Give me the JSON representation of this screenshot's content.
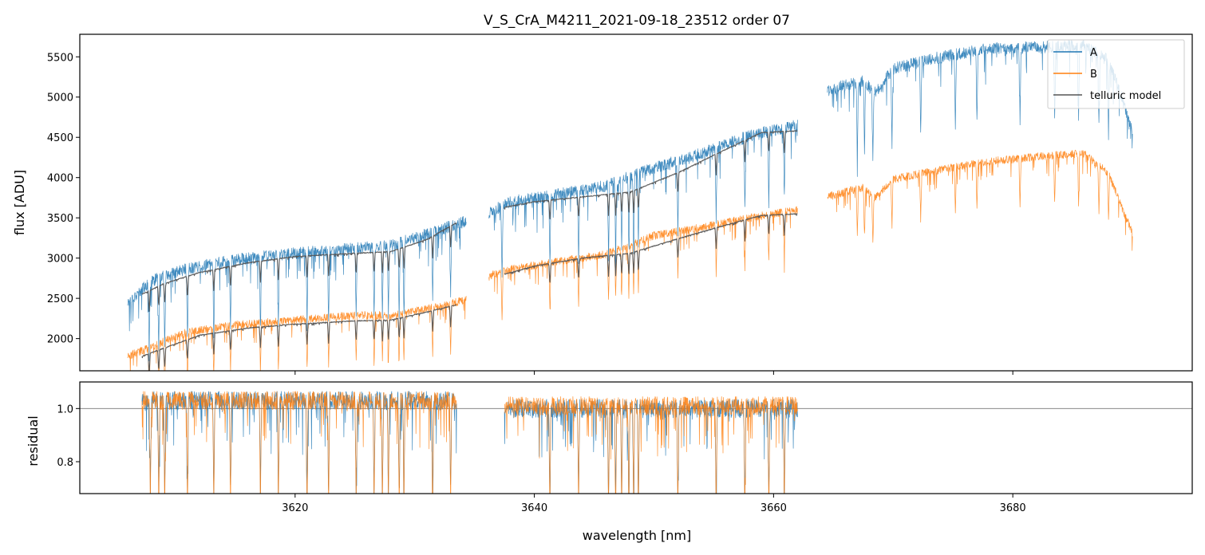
{
  "chart_data": [
    {
      "panel": "top",
      "type": "line",
      "title": "V_S_CrA_M4211_2021-09-18_23512  order 07",
      "xlabel": "",
      "ylabel": "flux [ADU]",
      "xlim": [
        3602,
        3695
      ],
      "ylim": [
        1600,
        5780
      ],
      "yticks": [
        2000,
        2500,
        3000,
        3500,
        4000,
        4500,
        5000,
        5500
      ],
      "xticks": [
        3620,
        3640,
        3660,
        3680
      ],
      "legend": {
        "placement": "top-right",
        "entries": [
          "A",
          "B",
          "telluric model"
        ]
      },
      "series": [
        {
          "name": "A",
          "color": "#1f77b4",
          "segments": [
            {
              "x": [
                3606,
                3608,
                3611,
                3615,
                3620,
                3625,
                3628,
                3631,
                3634.3
              ],
              "y": [
                2450,
                2720,
                2870,
                2980,
                3060,
                3120,
                3150,
                3300,
                3460
              ]
            },
            {
              "x": [
                3636.2,
                3638,
                3642,
                3646,
                3650,
                3654,
                3658,
                3662
              ],
              "y": [
                3560,
                3700,
                3790,
                3900,
                4120,
                4300,
                4520,
                4660
              ]
            },
            {
              "x": [
                3664.5,
                3666,
                3667.5,
                3668.5,
                3670,
                3674,
                3678,
                3682,
                3686,
                3688,
                3690
              ],
              "y": [
                5080,
                5150,
                5200,
                5050,
                5350,
                5500,
                5600,
                5620,
                5640,
                5450,
                4600
              ]
            }
          ]
        },
        {
          "name": "B",
          "color": "#ff7f0e",
          "segments": [
            {
              "x": [
                3606,
                3608,
                3611,
                3615,
                3620,
                3625,
                3628,
                3631,
                3634.3
              ],
              "y": [
                1780,
                1900,
                2080,
                2170,
                2230,
                2290,
                2290,
                2370,
                2480
              ]
            },
            {
              "x": [
                3636.2,
                3638,
                3642,
                3646,
                3650,
                3654,
                3658,
                3662
              ],
              "y": [
                2780,
                2860,
                2960,
                3050,
                3280,
                3380,
                3500,
                3600
              ]
            },
            {
              "x": [
                3664.5,
                3666,
                3667.5,
                3668.5,
                3670,
                3674,
                3678,
                3682,
                3686,
                3688,
                3690
              ],
              "y": [
                3760,
                3820,
                3880,
                3750,
                3980,
                4100,
                4200,
                4260,
                4300,
                4050,
                3300
              ]
            }
          ]
        }
      ],
      "telluric_model": {
        "name": "telluric model",
        "color": "#555555",
        "segments": [
          {
            "x": [
              3607.2,
              3609,
              3612,
              3616,
              3620,
              3625,
              3628,
              3631,
              3633.5
            ],
            "y": [
              2550,
              2680,
              2820,
              2940,
              3020,
              3060,
              3080,
              3230,
              3440
            ]
          },
          {
            "x": [
              3637.5,
              3640,
              3644,
              3648,
              3652,
              3656,
              3659,
              3662
            ],
            "y": [
              3630,
              3700,
              3760,
              3820,
              4060,
              4350,
              4560,
              4580
            ]
          },
          {
            "x": [
              3607.2,
              3609,
              3612,
              3616,
              3620,
              3625,
              3628,
              3631,
              3633.5
            ],
            "y": [
              1780,
              1880,
              2040,
              2130,
              2180,
              2220,
              2230,
              2330,
              2420
            ]
          },
          {
            "x": [
              3637.5,
              3640,
              3644,
              3648,
              3652,
              3656,
              3659,
              3662
            ],
            "y": [
              2800,
              2900,
              3000,
              3060,
              3240,
              3410,
              3530,
              3550
            ]
          }
        ]
      },
      "absorption_lines": [
        3607.8,
        3608.6,
        3609.1,
        3611.0,
        3613.2,
        3614.6,
        3617.1,
        3618.6,
        3621.0,
        3622.8,
        3625.1,
        3626.6,
        3627.3,
        3627.8,
        3628.7,
        3629.1,
        3631.5,
        3633.0,
        3637.3,
        3641.3,
        3643.7,
        3646.2,
        3646.8,
        3647.3,
        3647.9,
        3648.3,
        3648.7,
        3652.0,
        3655.2,
        3657.6,
        3659.6,
        3660.9,
        3663.1,
        3667.0,
        3667.6,
        3668.3,
        3669.9,
        3672.3,
        3675.2,
        3677.0,
        3680.6,
        3683.5,
        3685.5,
        3687.2,
        3688.0,
        3690.1
      ]
    },
    {
      "panel": "bottom",
      "type": "line",
      "title": "",
      "xlabel": "wavelength [nm]",
      "ylabel": "residual",
      "xlim": [
        3602,
        3695
      ],
      "ylim": [
        0.68,
        1.1
      ],
      "yticks": [
        0.8,
        1.0
      ],
      "xticks": [
        3620,
        3640,
        3660,
        3680
      ],
      "reference_line": 1.0,
      "series": [
        {
          "name": "A",
          "color": "#1f77b4",
          "segments": [
            {
              "x": [
                3607.2,
                3633.5
              ],
              "y": [
                1.03,
                1.03
              ]
            },
            {
              "x": [
                3637.5,
                3662
              ],
              "y": [
                1.0,
                1.0
              ]
            }
          ]
        },
        {
          "name": "B",
          "color": "#ff7f0e",
          "segments": [
            {
              "x": [
                3607.2,
                3633.5
              ],
              "y": [
                1.03,
                1.03
              ]
            },
            {
              "x": [
                3637.5,
                3662
              ],
              "y": [
                1.01,
                1.01
              ]
            }
          ]
        }
      ],
      "absorption_lines": [
        3607.9,
        3608.6,
        3609.1,
        3611.0,
        3613.2,
        3614.6,
        3617.1,
        3618.6,
        3621.0,
        3622.8,
        3625.1,
        3626.6,
        3627.3,
        3627.8,
        3628.7,
        3629.1,
        3631.5,
        3633.0,
        3637.3,
        3641.3,
        3643.7,
        3646.2,
        3646.8,
        3647.3,
        3647.9,
        3648.3,
        3648.7,
        3652.0,
        3655.2,
        3657.6,
        3659.6,
        3660.9
      ]
    }
  ]
}
